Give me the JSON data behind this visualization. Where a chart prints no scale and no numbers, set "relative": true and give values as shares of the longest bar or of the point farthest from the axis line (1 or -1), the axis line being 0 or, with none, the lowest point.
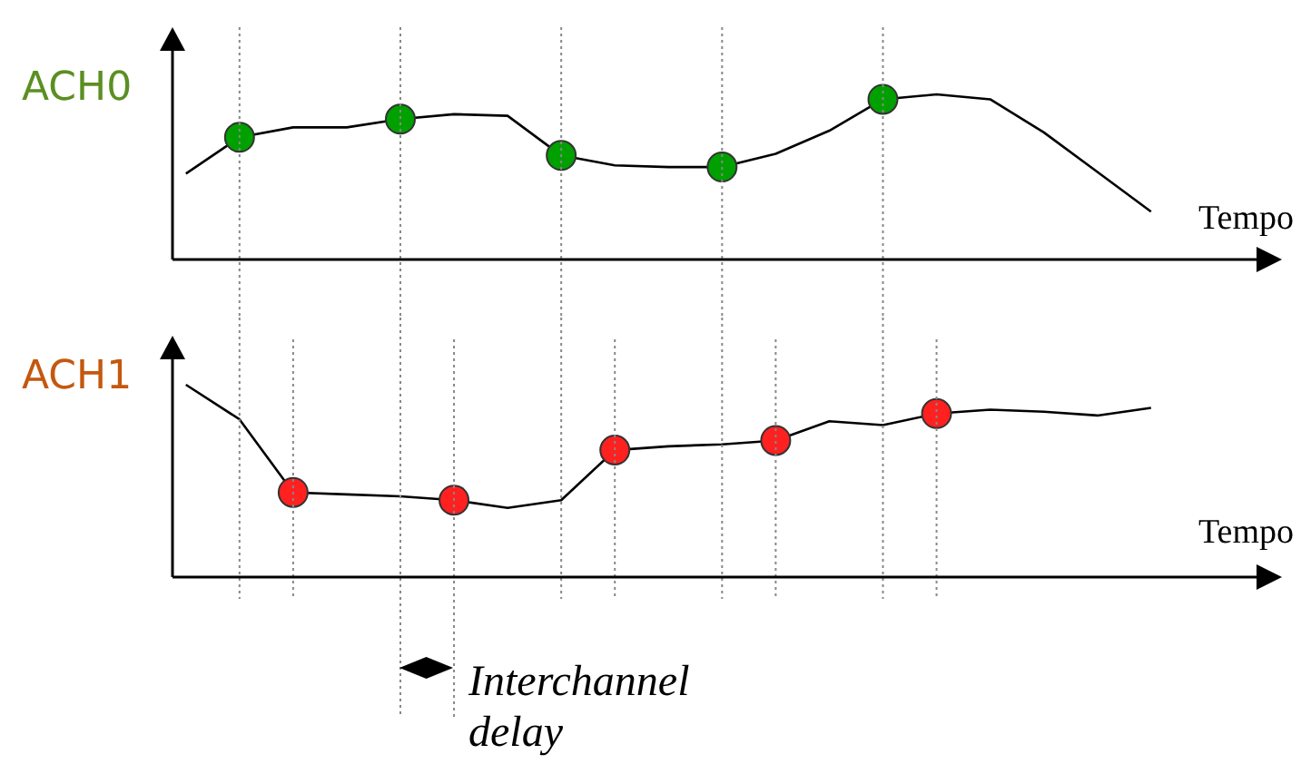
{
  "chart_data": [
    {
      "type": "line",
      "relative": true,
      "ylabel": "ACH0",
      "xlabel": "Tempo",
      "legend": false,
      "grid": "x",
      "categories": [
        null,
        null,
        null,
        null,
        null,
        null,
        null,
        null,
        null,
        null,
        null,
        null,
        null,
        null,
        null,
        null,
        null,
        null,
        null
      ],
      "series": [
        {
          "color": "#000000",
          "values": [
            0.52,
            0.74,
            0.8,
            0.8,
            0.85,
            0.88,
            0.87,
            0.63,
            0.57,
            0.56,
            0.56,
            0.64,
            0.78,
            0.97,
            1.0,
            0.97,
            0.77,
            0.53,
            0.29
          ],
          "colors": [
            null,
            "#00a000",
            null,
            null,
            "#00a000",
            null,
            null,
            "#00a000",
            null,
            null,
            "#00a000",
            null,
            null,
            "#00a000",
            null,
            null,
            null,
            null,
            null
          ]
        }
      ]
    },
    {
      "type": "line",
      "relative": true,
      "ylabel": "ACH1",
      "xlabel": "Tempo",
      "legend": false,
      "grid": "x",
      "categories": [
        null,
        null,
        null,
        null,
        null,
        null,
        null,
        null,
        null,
        null,
        null,
        null,
        null,
        null,
        null,
        null,
        null,
        null,
        null
      ],
      "annotations": [
        "Interchannel delay"
      ],
      "series": [
        {
          "color": "#000000",
          "values": [
            1.0,
            0.82,
            0.44,
            0.43,
            0.42,
            0.4,
            0.36,
            0.4,
            0.66,
            0.68,
            0.69,
            0.71,
            0.81,
            0.79,
            0.85,
            0.87,
            0.86,
            0.84,
            0.88
          ],
          "colors": [
            null,
            null,
            "#ff2020",
            null,
            null,
            "#ff2020",
            null,
            null,
            "#ff2020",
            null,
            null,
            "#ff2020",
            null,
            null,
            "#ff2020",
            null,
            null,
            null,
            null
          ]
        }
      ]
    }
  ]
}
